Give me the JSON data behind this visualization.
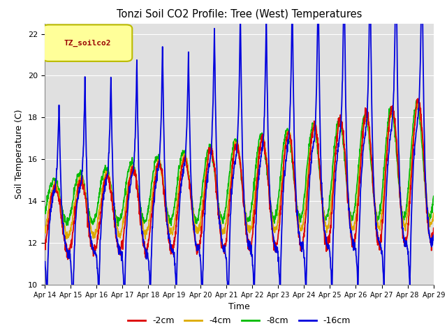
{
  "title": "Tonzi Soil CO2 Profile: Tree (West) Temperatures",
  "xlabel": "Time",
  "ylabel": "Soil Temperature (C)",
  "ylim": [
    10,
    22.5
  ],
  "tick_labels": [
    "Apr 14",
    "Apr 15",
    "Apr 16",
    "Apr 17",
    "Apr 18",
    "Apr 19",
    "Apr 20",
    "Apr 21",
    "Apr 22",
    "Apr 23",
    "Apr 24",
    "Apr 25",
    "Apr 26",
    "Apr 27",
    "Apr 28",
    "Apr 29"
  ],
  "colors": {
    "2cm": "#dd0000",
    "4cm": "#ddaa00",
    "8cm": "#00bb00",
    "16cm": "#0000dd"
  },
  "legend_label": "TZ_soilco2",
  "legend_bg": "#ffff99",
  "legend_border": "#bbbb00",
  "bg_color": "#e0e0e0",
  "grid_color": "#ffffff"
}
